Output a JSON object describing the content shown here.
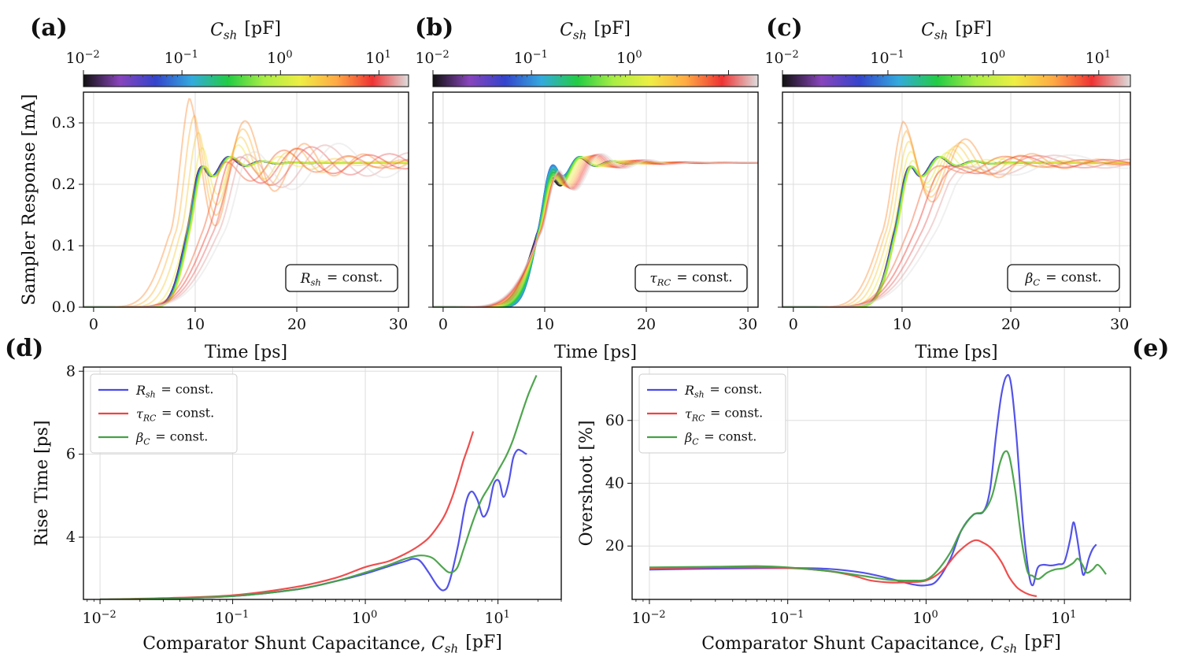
{
  "colors": {
    "blue": "#4a4ae8",
    "red": "#ee4444",
    "green": "#46a046",
    "grid": "#dddddd",
    "colormap": [
      "#111111",
      "#8844bb",
      "#3344cc",
      "#33aadd",
      "#22cc44",
      "#aaee44",
      "#eeee44",
      "#ffaa44",
      "#ee3333",
      "#dddddd"
    ]
  },
  "colorbar": {
    "title": "C_sh [pF]",
    "log_range": [
      -2,
      1.3
    ],
    "tick_labels": [
      "10^-2",
      "10^-1",
      "10^0",
      "10^1"
    ]
  },
  "chart_data": [
    {
      "panel": "(a)",
      "type": "line",
      "xlabel": "Time [ps]",
      "ylabel": "Sampler Response [mA]",
      "xlim": [
        -1,
        31
      ],
      "ylim": [
        0,
        0.35
      ],
      "xticks": [
        0,
        10,
        20,
        30
      ],
      "yticks": [
        0.0,
        0.1,
        0.2,
        0.3
      ],
      "annotation": "R_sh = const.",
      "mode": "rsh",
      "series_count": 26,
      "final_value": 0.235
    },
    {
      "panel": "(b)",
      "type": "line",
      "xlabel": "Time [ps]",
      "ylabel": "",
      "xlim": [
        -1,
        31
      ],
      "ylim": [
        0,
        0.35
      ],
      "xticks": [
        0,
        10,
        20,
        30
      ],
      "yticks": [],
      "annotation": "τ_RC = const.",
      "mode": "tau",
      "series_count": 26,
      "final_value": 0.235
    },
    {
      "panel": "(c)",
      "type": "line",
      "xlabel": "Time [ps]",
      "ylabel": "",
      "xlim": [
        -1,
        31
      ],
      "ylim": [
        0,
        0.35
      ],
      "xticks": [
        0,
        10,
        20,
        30
      ],
      "yticks": [],
      "annotation": "β_C = const.",
      "mode": "beta",
      "series_count": 26,
      "final_value": 0.235
    },
    {
      "panel": "(d)",
      "type": "line",
      "xlabel": "Comparator Shunt Capacitance, C_sh [pF]",
      "ylabel": "Rise Time [ps]",
      "xscale": "log",
      "xlim": [
        0.0075,
        30
      ],
      "ylim": [
        2.5,
        8.1
      ],
      "yticks": [
        4,
        6,
        8
      ],
      "xtick_labels": [
        "10^-2",
        "10^-1",
        "10^0",
        "10^1"
      ],
      "legend": "top-left",
      "series": [
        {
          "name": "R_sh = const.",
          "color_key": "blue",
          "x": [
            0.01,
            0.03,
            0.1,
            0.3,
            0.6,
            1.0,
            1.5,
            2.0,
            2.3,
            2.6,
            3.0,
            3.5,
            3.9,
            4.3,
            5.0,
            5.7,
            6.3,
            7.0,
            7.7,
            8.5,
            9.3,
            10.2,
            11.0,
            12.0,
            13.0,
            14.0,
            15.0,
            16.0,
            16.5
          ],
          "values": [
            2.5,
            2.52,
            2.58,
            2.74,
            2.94,
            3.12,
            3.3,
            3.42,
            3.48,
            3.42,
            3.15,
            2.82,
            2.72,
            2.92,
            3.8,
            4.8,
            5.1,
            4.9,
            4.5,
            4.7,
            5.28,
            5.35,
            4.97,
            5.3,
            5.9,
            6.1,
            6.08,
            6.02,
            6.0
          ]
        },
        {
          "name": "τ_RC = const.",
          "color_key": "red",
          "x": [
            0.01,
            0.03,
            0.1,
            0.3,
            0.6,
            1.0,
            1.5,
            2.0,
            2.5,
            3.0,
            3.5,
            4.0,
            4.5,
            5.0,
            5.5,
            6.0,
            6.5
          ],
          "values": [
            2.5,
            2.53,
            2.6,
            2.8,
            3.02,
            3.28,
            3.42,
            3.6,
            3.78,
            3.98,
            4.25,
            4.55,
            4.95,
            5.4,
            5.85,
            6.2,
            6.55
          ]
        },
        {
          "name": "β_C = const.",
          "color_key": "green",
          "x": [
            0.01,
            0.03,
            0.1,
            0.3,
            0.6,
            1.0,
            1.5,
            2.0,
            2.6,
            3.2,
            3.8,
            4.3,
            4.9,
            5.5,
            6.5,
            7.5,
            8.5,
            10.0,
            11.5,
            13.0,
            15.0,
            17.0,
            19.5
          ],
          "values": [
            2.5,
            2.52,
            2.58,
            2.74,
            2.94,
            3.15,
            3.33,
            3.48,
            3.56,
            3.5,
            3.28,
            3.15,
            3.25,
            3.7,
            4.4,
            4.9,
            5.2,
            5.6,
            5.95,
            6.35,
            6.95,
            7.45,
            7.9
          ]
        }
      ]
    },
    {
      "panel": "(e)",
      "type": "line",
      "xlabel": "Comparator Shunt Capacitance, C_sh [pF]",
      "ylabel": "Overshoot [%]",
      "xscale": "log",
      "xlim": [
        0.0075,
        30
      ],
      "ylim": [
        3,
        77
      ],
      "yticks": [
        20,
        40,
        60
      ],
      "xtick_labels": [
        "10^-2",
        "10^-1",
        "10^0",
        "10^1"
      ],
      "legend": "top-left",
      "series": [
        {
          "name": "R_sh = const.",
          "color_key": "blue",
          "x": [
            0.01,
            0.03,
            0.1,
            0.2,
            0.35,
            0.55,
            0.8,
            1.0,
            1.2,
            1.5,
            1.8,
            2.2,
            2.6,
            2.9,
            3.2,
            3.5,
            3.8,
            4.1,
            4.5,
            5.0,
            5.5,
            5.9,
            6.4,
            7.0,
            8.0,
            9.0,
            10.0,
            11.0,
            11.6,
            12.2,
            13.0,
            13.6,
            14.2,
            15.0,
            16.0,
            17.0
          ],
          "values": [
            12.5,
            12.8,
            13.0,
            12.7,
            11.5,
            9.6,
            7.8,
            7.5,
            9.0,
            16.0,
            25.0,
            30.0,
            31.0,
            38.0,
            55.0,
            68.0,
            74.0,
            72.0,
            55.0,
            28.0,
            12.0,
            7.5,
            13.0,
            14.0,
            13.8,
            14.2,
            15.0,
            22.0,
            27.5,
            24.0,
            16.0,
            11.0,
            12.0,
            16.0,
            19.0,
            20.5
          ]
        },
        {
          "name": "τ_RC = const.",
          "color_key": "red",
          "x": [
            0.01,
            0.03,
            0.1,
            0.2,
            0.3,
            0.4,
            0.55,
            0.75,
            1.0,
            1.3,
            1.7,
            2.2,
            2.6,
            3.0,
            3.5,
            4.0,
            4.5,
            5.0,
            5.6,
            6.3
          ],
          "values": [
            12.8,
            13.2,
            13.0,
            12.0,
            10.5,
            9.0,
            8.4,
            8.5,
            9.0,
            12.0,
            18.0,
            21.7,
            21.0,
            19.0,
            15.0,
            10.0,
            7.0,
            5.5,
            4.5,
            4.0
          ]
        },
        {
          "name": "β_C = const.",
          "color_key": "green",
          "x": [
            0.01,
            0.03,
            0.06,
            0.1,
            0.2,
            0.35,
            0.55,
            0.8,
            1.0,
            1.2,
            1.5,
            1.8,
            2.2,
            2.6,
            3.0,
            3.4,
            3.7,
            4.0,
            4.4,
            4.9,
            5.4,
            5.9,
            6.5,
            7.5,
            8.5,
            10.0,
            11.5,
            12.5,
            13.5,
            14.5,
            16.0,
            17.5,
            20.0
          ],
          "values": [
            13.2,
            13.4,
            13.6,
            13.2,
            12.0,
            10.5,
            9.2,
            9.0,
            9.3,
            12.0,
            18.0,
            25.0,
            30.0,
            31.0,
            36.0,
            46.0,
            50.0,
            48.5,
            38.0,
            22.0,
            12.0,
            10.5,
            9.5,
            11.5,
            12.5,
            13.0,
            14.5,
            16.0,
            14.0,
            11.5,
            12.5,
            14.0,
            11.0
          ]
        }
      ]
    }
  ]
}
